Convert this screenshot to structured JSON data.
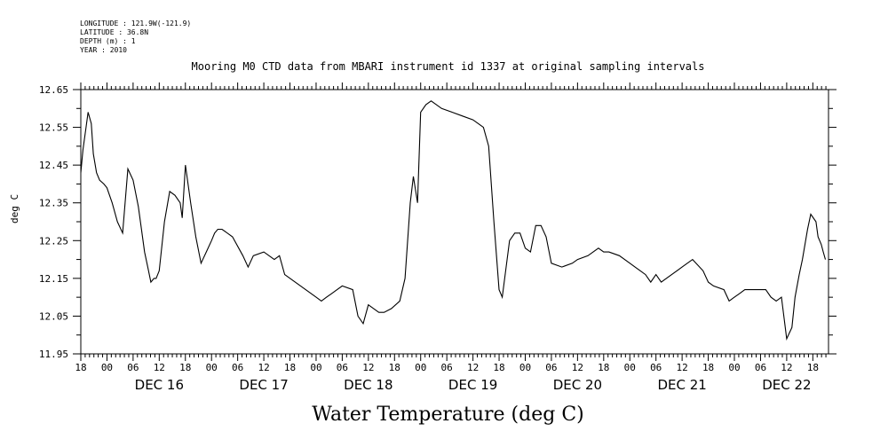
{
  "meta": {
    "longitude": "LONGITUDE : 121.9W(-121.9)",
    "latitude": "LATITUDE : 36.8N",
    "depth": "DEPTH (m) : 1",
    "year": "YEAR : 2010"
  },
  "chart_data": {
    "type": "line",
    "title": "Mooring M0 CTD data from MBARI instrument id 1337 at original sampling intervals",
    "xlabel": "Water Temperature (deg C)",
    "ylabel": "deg C",
    "ylim": [
      11.95,
      12.65
    ],
    "yticks": [
      "11.95",
      "12.05",
      "12.15",
      "12.25",
      "12.35",
      "12.45",
      "12.55",
      "12.65"
    ],
    "xlim": [
      -0.25,
      6.9
    ],
    "xtick_hours": [
      "00",
      "06",
      "12",
      "18"
    ],
    "day_labels": [
      "DEC 16",
      "DEC 17",
      "DEC 18",
      "DEC 19",
      "DEC 20",
      "DEC 21",
      "DEC 22"
    ],
    "grid": false,
    "series": [
      {
        "color": "#000000",
        "x": [
          -0.25,
          -0.23,
          -0.2,
          -0.18,
          -0.15,
          -0.13,
          -0.1,
          -0.07,
          -0.03,
          0.0,
          0.05,
          0.1,
          0.15,
          0.2,
          0.25,
          0.3,
          0.33,
          0.36,
          0.39,
          0.42,
          0.45,
          0.47,
          0.5,
          0.55,
          0.6,
          0.65,
          0.7,
          0.72,
          0.75,
          0.8,
          0.85,
          0.9,
          0.95,
          1.0,
          1.03,
          1.06,
          1.1,
          1.2,
          1.3,
          1.35,
          1.4,
          1.5,
          1.6,
          1.65,
          1.7,
          1.8,
          1.9,
          2.0,
          2.05,
          2.1,
          2.15,
          2.25,
          2.35,
          2.4,
          2.45,
          2.5,
          2.55,
          2.6,
          2.65,
          2.72,
          2.8,
          2.85,
          2.9,
          2.93,
          2.97,
          3.0,
          3.05,
          3.1,
          3.2,
          3.3,
          3.4,
          3.5,
          3.55,
          3.6,
          3.65,
          3.7,
          3.75,
          3.78,
          3.85,
          3.9,
          3.95,
          4.0,
          4.05,
          4.1,
          4.15,
          4.2,
          4.25,
          4.35,
          4.45,
          4.5,
          4.6,
          4.7,
          4.75,
          4.8,
          4.9,
          5.0,
          5.05,
          5.1,
          5.15,
          5.2,
          5.25,
          5.3,
          5.4,
          5.5,
          5.6,
          5.7,
          5.75,
          5.8,
          5.9,
          5.95,
          6.0,
          6.05,
          6.1,
          6.2,
          6.3,
          6.35,
          6.4,
          6.45,
          6.5,
          6.55,
          6.58,
          6.62,
          6.65,
          6.7,
          6.73,
          6.78,
          6.8,
          6.83,
          6.85,
          6.87
        ],
        "y": [
          12.43,
          12.49,
          12.55,
          12.59,
          12.56,
          12.48,
          12.43,
          12.41,
          12.4,
          12.39,
          12.35,
          12.3,
          12.27,
          12.44,
          12.41,
          12.34,
          12.28,
          12.22,
          12.18,
          12.14,
          12.15,
          12.15,
          12.17,
          12.3,
          12.38,
          12.37,
          12.35,
          12.31,
          12.45,
          12.35,
          12.26,
          12.19,
          12.22,
          12.25,
          12.27,
          12.28,
          12.28,
          12.26,
          12.21,
          12.18,
          12.21,
          12.22,
          12.2,
          12.21,
          12.16,
          12.14,
          12.12,
          12.1,
          12.09,
          12.1,
          12.11,
          12.13,
          12.12,
          12.05,
          12.03,
          12.08,
          12.07,
          12.06,
          12.06,
          12.07,
          12.09,
          12.15,
          12.35,
          12.42,
          12.35,
          12.59,
          12.61,
          12.62,
          12.6,
          12.59,
          12.58,
          12.57,
          12.56,
          12.55,
          12.5,
          12.3,
          12.12,
          12.1,
          12.25,
          12.27,
          12.27,
          12.23,
          12.22,
          12.29,
          12.29,
          12.26,
          12.19,
          12.18,
          12.19,
          12.2,
          12.21,
          12.23,
          12.22,
          12.22,
          12.21,
          12.19,
          12.18,
          12.17,
          12.16,
          12.14,
          12.16,
          12.14,
          12.16,
          12.18,
          12.2,
          12.17,
          12.14,
          12.13,
          12.12,
          12.09,
          12.1,
          12.11,
          12.12,
          12.12,
          12.12,
          12.1,
          12.09,
          12.1,
          11.99,
          12.02,
          12.1,
          12.16,
          12.2,
          12.28,
          12.32,
          12.3,
          12.26,
          12.24,
          12.22,
          12.2
        ]
      }
    ]
  }
}
